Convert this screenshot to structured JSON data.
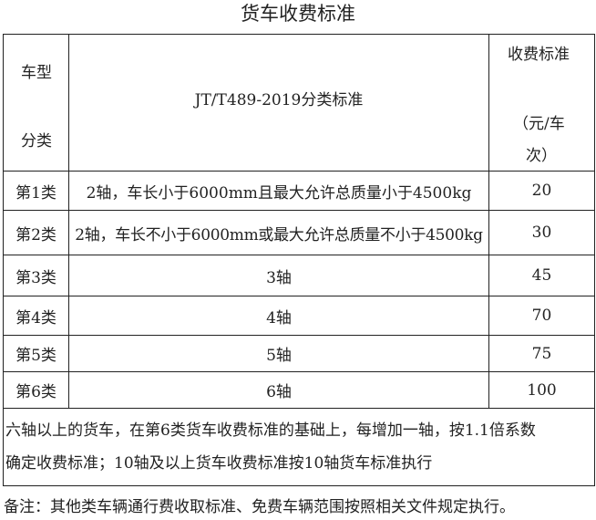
{
  "title": "货车收费标准",
  "header": {
    "type_line1": "车型",
    "type_line2": "分类",
    "standard": "JT/T489-2019分类标准",
    "fee_line1": "收费标准",
    "fee_line2": "（元/车",
    "fee_line3": "次）"
  },
  "rows": [
    {
      "class": "第1类",
      "desc": "2轴，车长小于6000mm且最大允许总质量小于4500kg",
      "fee": "20"
    },
    {
      "class": "第2类",
      "desc": "2轴，车长不小于6000mm或最大允许总质量不小于4500kg",
      "fee": "30"
    },
    {
      "class": "第3类",
      "desc": "3轴",
      "fee": "45"
    },
    {
      "class": "第4类",
      "desc": "4轴",
      "fee": "70"
    },
    {
      "class": "第5类",
      "desc": "5轴",
      "fee": "75"
    },
    {
      "class": "第6类",
      "desc": "6轴",
      "fee": "100"
    }
  ],
  "footer": {
    "line1": "六轴以上的货车，在第6类货车收费标准的基础上，每增加一轴，按1.1倍系数",
    "line2": "确定收费标准；10轴及以上货车收费标准按10轴货车标准执行"
  },
  "note": "备注：其他类车辆通行费收取标准、免费车辆范围按照相关文件规定执行。"
}
